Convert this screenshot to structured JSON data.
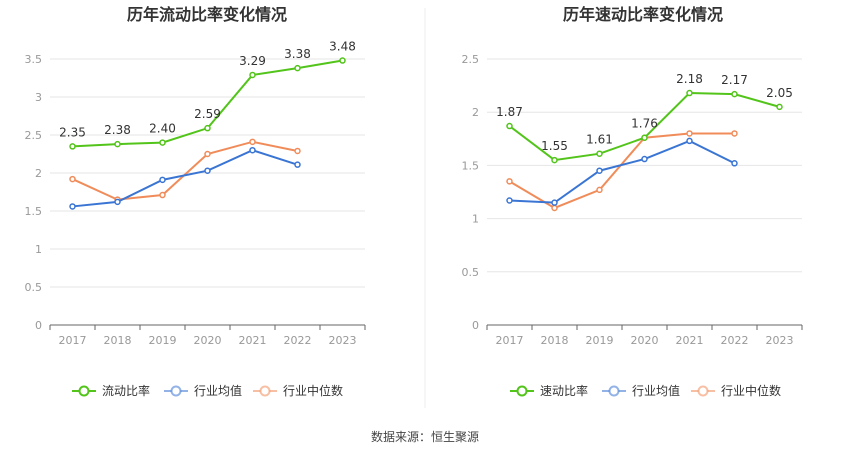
{
  "chart_data": [
    {
      "type": "line",
      "title": "历年流动比率变化情况",
      "categories": [
        "2017",
        "2018",
        "2019",
        "2020",
        "2021",
        "2022",
        "2023"
      ],
      "ylim": [
        0,
        3.5
      ],
      "yticks": [
        0,
        0.5,
        1,
        1.5,
        2,
        2.5,
        3,
        3.5
      ],
      "grid": true,
      "legend_position": "bottom",
      "series": [
        {
          "name": "流动比率",
          "color": "#52c41a",
          "values": [
            2.35,
            2.38,
            2.4,
            2.59,
            3.29,
            3.38,
            3.48
          ],
          "labels": [
            "2.35",
            "2.38",
            "2.40",
            "2.59",
            "3.29",
            "3.38",
            "3.48"
          ]
        },
        {
          "name": "行业均值",
          "color": "#3a75d4",
          "values": [
            1.56,
            1.62,
            1.91,
            2.03,
            2.3,
            2.11,
            null
          ]
        },
        {
          "name": "行业中位数",
          "color": "#f08c5a",
          "values": [
            1.92,
            1.65,
            1.71,
            2.25,
            2.41,
            2.29,
            null
          ]
        }
      ]
    },
    {
      "type": "line",
      "title": "历年速动比率变化情况",
      "categories": [
        "2017",
        "2018",
        "2019",
        "2020",
        "2021",
        "2022",
        "2023"
      ],
      "ylim": [
        0,
        2.5
      ],
      "yticks": [
        0,
        0.5,
        1,
        1.5,
        2,
        2.5
      ],
      "grid": true,
      "legend_position": "bottom",
      "series": [
        {
          "name": "速动比率",
          "color": "#52c41a",
          "values": [
            1.87,
            1.55,
            1.61,
            1.76,
            2.18,
            2.17,
            2.05
          ],
          "labels": [
            "1.87",
            "1.55",
            "1.61",
            "1.76",
            "2.18",
            "2.17",
            "2.05"
          ]
        },
        {
          "name": "行业均值",
          "color": "#3a75d4",
          "values": [
            1.17,
            1.15,
            1.45,
            1.56,
            1.73,
            1.52,
            null
          ]
        },
        {
          "name": "行业中位数",
          "color": "#f08c5a",
          "values": [
            1.35,
            1.1,
            1.27,
            1.76,
            1.8,
            1.8,
            null
          ]
        }
      ]
    }
  ],
  "source_text": "数据来源：恒生聚源"
}
